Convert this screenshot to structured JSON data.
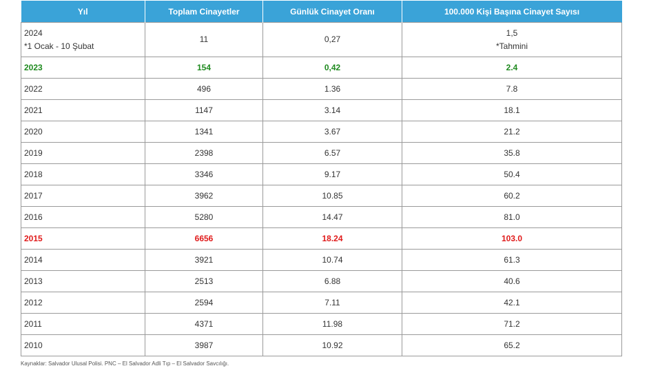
{
  "table": {
    "headers": [
      "Yıl",
      "Toplam Cinayetler",
      "Günlük Cinayet Oranı",
      "100.000 Kişi Başına Cinayet Sayısı"
    ],
    "first_row": {
      "year_line1": "2024",
      "year_line2": "*1 Ocak - 10 Şubat",
      "total": "11",
      "daily": "0,27",
      "per100k_line1": "1,5",
      "per100k_line2": "*Tahmini"
    },
    "rows": [
      {
        "year": "2023",
        "total": "154",
        "daily": "0,42",
        "per100k": "2.4",
        "highlight": "green"
      },
      {
        "year": "2022",
        "total": "496",
        "daily": "1.36",
        "per100k": "7.8",
        "highlight": ""
      },
      {
        "year": "2021",
        "total": "1147",
        "daily": "3.14",
        "per100k": "18.1",
        "highlight": ""
      },
      {
        "year": "2020",
        "total": "1341",
        "daily": "3.67",
        "per100k": "21.2",
        "highlight": ""
      },
      {
        "year": "2019",
        "total": "2398",
        "daily": "6.57",
        "per100k": "35.8",
        "highlight": ""
      },
      {
        "year": "2018",
        "total": "3346",
        "daily": "9.17",
        "per100k": "50.4",
        "highlight": ""
      },
      {
        "year": "2017",
        "total": "3962",
        "daily": "10.85",
        "per100k": "60.2",
        "highlight": ""
      },
      {
        "year": "2016",
        "total": "5280",
        "daily": "14.47",
        "per100k": "81.0",
        "highlight": ""
      },
      {
        "year": "2015",
        "total": "6656",
        "daily": "18.24",
        "per100k": "103.0",
        "highlight": "red"
      },
      {
        "year": "2014",
        "total": "3921",
        "daily": "10.74",
        "per100k": "61.3",
        "highlight": ""
      },
      {
        "year": "2013",
        "total": "2513",
        "daily": "6.88",
        "per100k": "40.6",
        "highlight": ""
      },
      {
        "year": "2012",
        "total": "2594",
        "daily": "7.11",
        "per100k": "42.1",
        "highlight": ""
      },
      {
        "year": "2011",
        "total": "4371",
        "daily": "11.98",
        "per100k": "71.2",
        "highlight": ""
      },
      {
        "year": "2010",
        "total": "3987",
        "daily": "10.92",
        "per100k": "65.2",
        "highlight": ""
      }
    ],
    "colors": {
      "header_bg": "#3aa3d8",
      "green": "#1f8a1f",
      "red": "#e01b1b"
    }
  },
  "sources": "Kaynaklar: Salvador Ulusal Polisi. PNC – El Salvador Adli Tıp – El Salvador Savcılığı."
}
